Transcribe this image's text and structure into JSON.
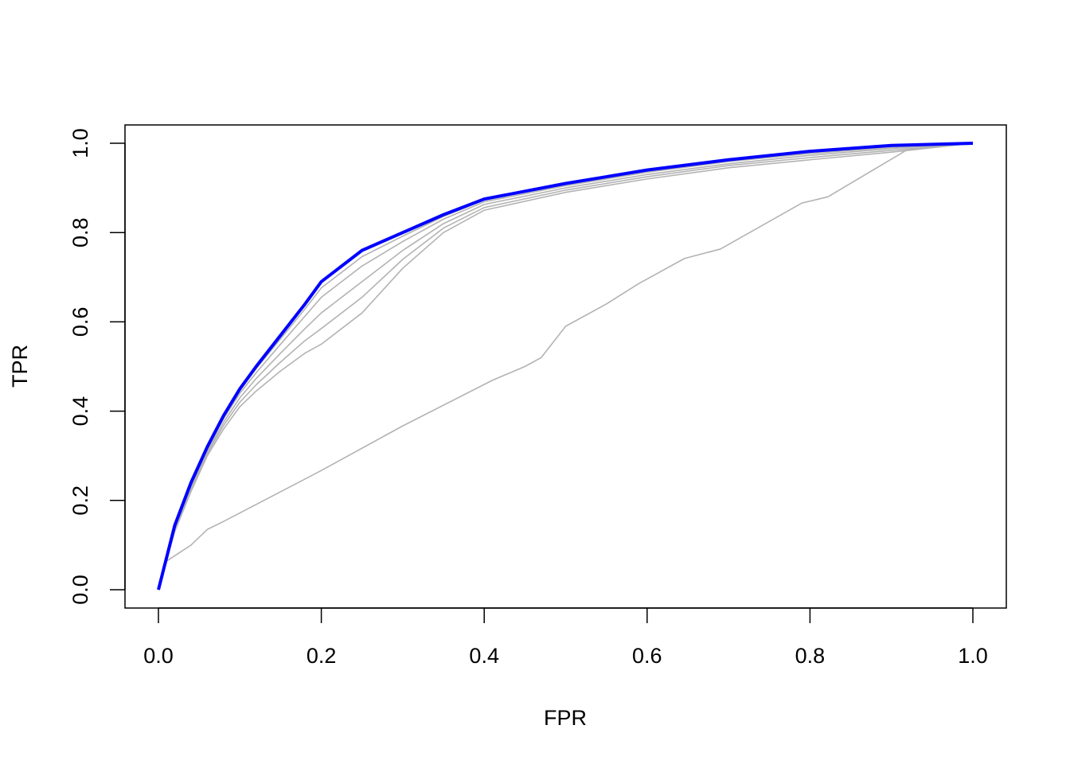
{
  "chart_data": {
    "type": "line",
    "title": "",
    "xlabel": "FPR",
    "ylabel": "TPR",
    "xlim": [
      0,
      1
    ],
    "ylim": [
      0,
      1
    ],
    "xticks": [
      "0.0",
      "0.2",
      "0.4",
      "0.6",
      "0.8",
      "1.0"
    ],
    "yticks": [
      "0.0",
      "0.2",
      "0.4",
      "0.6",
      "0.8",
      "1.0"
    ],
    "grid": false,
    "legend": "none",
    "colors": {
      "highlight": "#0000ff",
      "others": "#b3b3b3"
    },
    "x": [
      0,
      0.02,
      0.04,
      0.06,
      0.08,
      0.1,
      0.12,
      0.15,
      0.18,
      0.2,
      0.25,
      0.3,
      0.35,
      0.4,
      0.5,
      0.6,
      0.7,
      0.8,
      0.9,
      1
    ],
    "series": [
      {
        "color": "#b3b3b3",
        "y": [
          0,
          0.13,
          0.22,
          0.3,
          0.36,
          0.41,
          0.445,
          0.49,
          0.53,
          0.55,
          0.62,
          0.72,
          0.8,
          0.85,
          0.89,
          0.92,
          0.945,
          0.963,
          0.98,
          1
        ]
      },
      {
        "color": "#b3b3b3",
        "y": [
          0,
          0.134,
          0.225,
          0.305,
          0.368,
          0.42,
          0.459,
          0.51,
          0.558,
          0.585,
          0.655,
          0.74,
          0.81,
          0.856,
          0.895,
          0.925,
          0.95,
          0.968,
          0.984,
          1
        ]
      },
      {
        "color": "#b3b3b3",
        "y": [
          0,
          0.137,
          0.23,
          0.31,
          0.375,
          0.43,
          0.473,
          0.53,
          0.585,
          0.62,
          0.69,
          0.76,
          0.82,
          0.863,
          0.9,
          0.93,
          0.954,
          0.973,
          0.988,
          1
        ]
      },
      {
        "color": "#b3b3b3",
        "y": [
          0,
          0.14,
          0.235,
          0.315,
          0.383,
          0.44,
          0.486,
          0.55,
          0.613,
          0.655,
          0.725,
          0.78,
          0.83,
          0.869,
          0.905,
          0.935,
          0.959,
          0.977,
          0.991,
          1
        ]
      },
      {
        "color": "#b3b3b3",
        "y": [
          0,
          0.143,
          0.238,
          0.318,
          0.387,
          0.446,
          0.495,
          0.562,
          0.629,
          0.676,
          0.746,
          0.792,
          0.836,
          0.873,
          0.908,
          0.938,
          0.961,
          0.98,
          0.993,
          1
        ]
      },
      {
        "color": "#0000ff",
        "y": [
          0,
          0.144,
          0.24,
          0.32,
          0.39,
          0.45,
          0.5,
          0.57,
          0.64,
          0.69,
          0.76,
          0.8,
          0.84,
          0.875,
          0.91,
          0.94,
          0.963,
          0.982,
          0.995,
          1
        ]
      }
    ],
    "outlier_series": {
      "color": "#b3b3b3",
      "x": [
        0,
        0.01,
        0.04,
        0.06,
        0.08,
        0.2,
        0.3,
        0.41,
        0.45,
        0.47,
        0.5,
        0.55,
        0.59,
        0.646,
        0.69,
        0.79,
        0.822,
        0.92,
        1
      ],
      "y": [
        0,
        0.064,
        0.1,
        0.135,
        0.153,
        0.267,
        0.367,
        0.469,
        0.5,
        0.52,
        0.59,
        0.64,
        0.686,
        0.742,
        0.763,
        0.866,
        0.88,
        0.986,
        1
      ]
    }
  }
}
